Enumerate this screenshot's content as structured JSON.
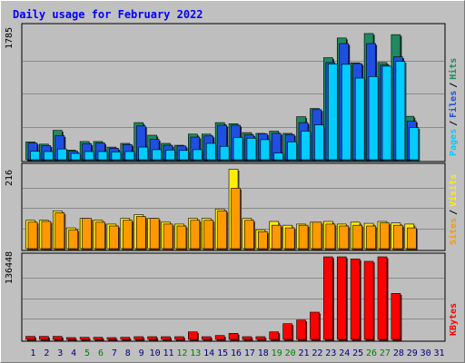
{
  "chart_data": {
    "type": "bar",
    "title": "Daily usage for February 2022",
    "days": [
      "1",
      "2",
      "3",
      "4",
      "5",
      "6",
      "7",
      "8",
      "9",
      "10",
      "11",
      "12",
      "13",
      "14",
      "15",
      "16",
      "17",
      "18",
      "19",
      "20",
      "21",
      "22",
      "23",
      "24",
      "25",
      "26",
      "27",
      "28",
      "29",
      "30",
      "31"
    ],
    "weekend_days": [
      "5",
      "6",
      "12",
      "13",
      "19",
      "20",
      "26",
      "27"
    ],
    "top_panel": {
      "max_label": "1785",
      "ymax": 1785,
      "axis_label_parts": [
        "Pages",
        "/",
        "Files",
        "/",
        "Hits"
      ],
      "series": [
        {
          "name": "Hits",
          "color": "#1f8a5f",
          "values": [
            240,
            210,
            395,
            130,
            245,
            245,
            170,
            220,
            500,
            330,
            220,
            195,
            345,
            345,
            500,
            485,
            365,
            355,
            385,
            355,
            580,
            690,
            1375,
            1640,
            1305,
            1700,
            1310,
            1685,
            585
          ]
        },
        {
          "name": "Files",
          "color": "#1f4fe0",
          "values": [
            225,
            190,
            325,
            115,
            215,
            225,
            155,
            205,
            455,
            275,
            195,
            185,
            305,
            320,
            465,
            465,
            335,
            350,
            355,
            340,
            500,
            675,
            1310,
            1565,
            1295,
            1565,
            1275,
            1385,
            520
          ]
        },
        {
          "name": "Pages",
          "color": "#00ccff",
          "values": [
            115,
            110,
            145,
            85,
            110,
            110,
            105,
            110,
            170,
            135,
            130,
            125,
            135,
            220,
            180,
            300,
            290,
            270,
            90,
            240,
            385,
            470,
            1290,
            1285,
            1100,
            1120,
            1260,
            1325,
            435
          ]
        }
      ]
    },
    "middle_panel": {
      "max_label": "216",
      "ymax": 216,
      "axis_label_parts": [
        "Sites",
        "/",
        "Visits"
      ],
      "series": [
        {
          "name": "Visits",
          "color": "#ffee00",
          "values": [
            75,
            75,
            100,
            55,
            80,
            75,
            65,
            80,
            90,
            80,
            70,
            65,
            80,
            80,
            105,
            210,
            80,
            50,
            72,
            62,
            65,
            70,
            72,
            65,
            70,
            67,
            72,
            68,
            65
          ]
        },
        {
          "name": "Sites",
          "color": "#ff9900",
          "values": [
            70,
            72,
            95,
            50,
            80,
            70,
            60,
            75,
            85,
            80,
            65,
            60,
            75,
            75,
            100,
            160,
            75,
            45,
            62,
            55,
            62,
            70,
            65,
            60,
            62,
            60,
            68,
            62,
            55
          ]
        }
      ]
    },
    "bottom_panel": {
      "max_label": "136448",
      "ymax": 136448,
      "axis_label_parts": [
        "KBytes"
      ],
      "series": [
        {
          "name": "KBytes",
          "color": "#ff0000",
          "values": [
            5000,
            5000,
            5000,
            2500,
            3500,
            3500,
            2500,
            3500,
            4500,
            4500,
            4500,
            4500,
            12500,
            4500,
            6500,
            10000,
            4500,
            4500,
            12500,
            26000,
            32000,
            45000,
            136448,
            136448,
            133000,
            129000,
            136448,
            76000,
            0,
            0,
            0
          ]
        }
      ]
    },
    "colors": {
      "frame": "#c0c0c0",
      "plot_bg": "#bebebe",
      "title": "#0000ff",
      "weekday": "#000080",
      "weekend": "#008000"
    }
  }
}
